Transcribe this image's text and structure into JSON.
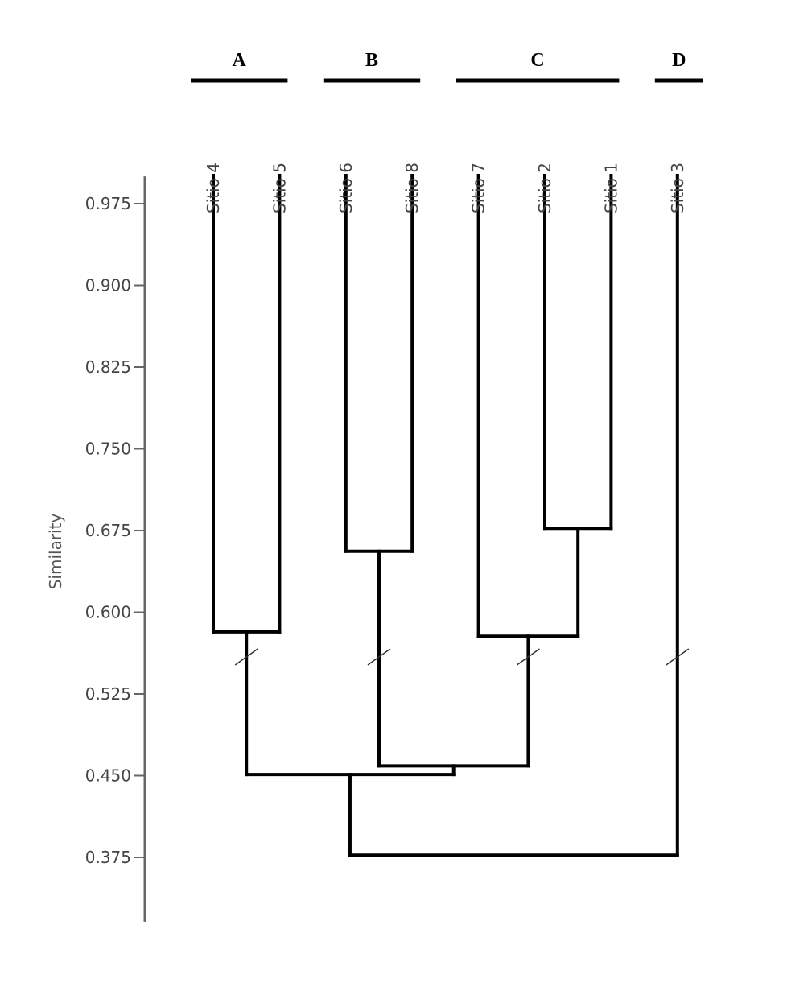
{
  "chart_data": {
    "type": "dendrogram",
    "title": "",
    "xlabel": "",
    "ylabel": "Similarity",
    "ylim": [
      0.316,
      1.0
    ],
    "yticks": [
      "0.975",
      "0.900",
      "0.825",
      "0.750",
      "0.675",
      "0.600",
      "0.525",
      "0.450",
      "0.375"
    ],
    "grid": false,
    "axis_break": 0.559,
    "leaves": [
      "Sitio 4",
      "Sitio 5",
      "Sitio 6",
      "Sitio 8",
      "Sitio 7",
      "Sitio 2",
      "Sitio 1",
      "Sitio 3"
    ],
    "merges": [
      {
        "id": "m1",
        "left": "Sitio 4",
        "right": "Sitio 5",
        "similarity": 0.582
      },
      {
        "id": "m2",
        "left": "Sitio 6",
        "right": "Sitio 8",
        "similarity": 0.656
      },
      {
        "id": "m3",
        "left": "Sitio 2",
        "right": "Sitio 1",
        "similarity": 0.677
      },
      {
        "id": "m4",
        "left": "Sitio 7",
        "right": "m3",
        "similarity": 0.578
      },
      {
        "id": "m5",
        "left": "m2",
        "right": "m4",
        "similarity": 0.459
      },
      {
        "id": "m6",
        "left": "m1",
        "right": "m5",
        "similarity": 0.451
      },
      {
        "id": "m7",
        "left": "m6",
        "right": "Sitio 3",
        "similarity": 0.377
      }
    ],
    "groups": [
      {
        "label": "A",
        "members": [
          "Sitio 4",
          "Sitio 5"
        ]
      },
      {
        "label": "B",
        "members": [
          "Sitio 6",
          "Sitio 8"
        ]
      },
      {
        "label": "C",
        "members": [
          "Sitio 7",
          "Sitio 2",
          "Sitio 1"
        ]
      },
      {
        "label": "D",
        "members": [
          "Sitio 3"
        ]
      }
    ],
    "colors": {
      "lines": "#000000",
      "axis": "#666666",
      "text": "#444444"
    }
  }
}
